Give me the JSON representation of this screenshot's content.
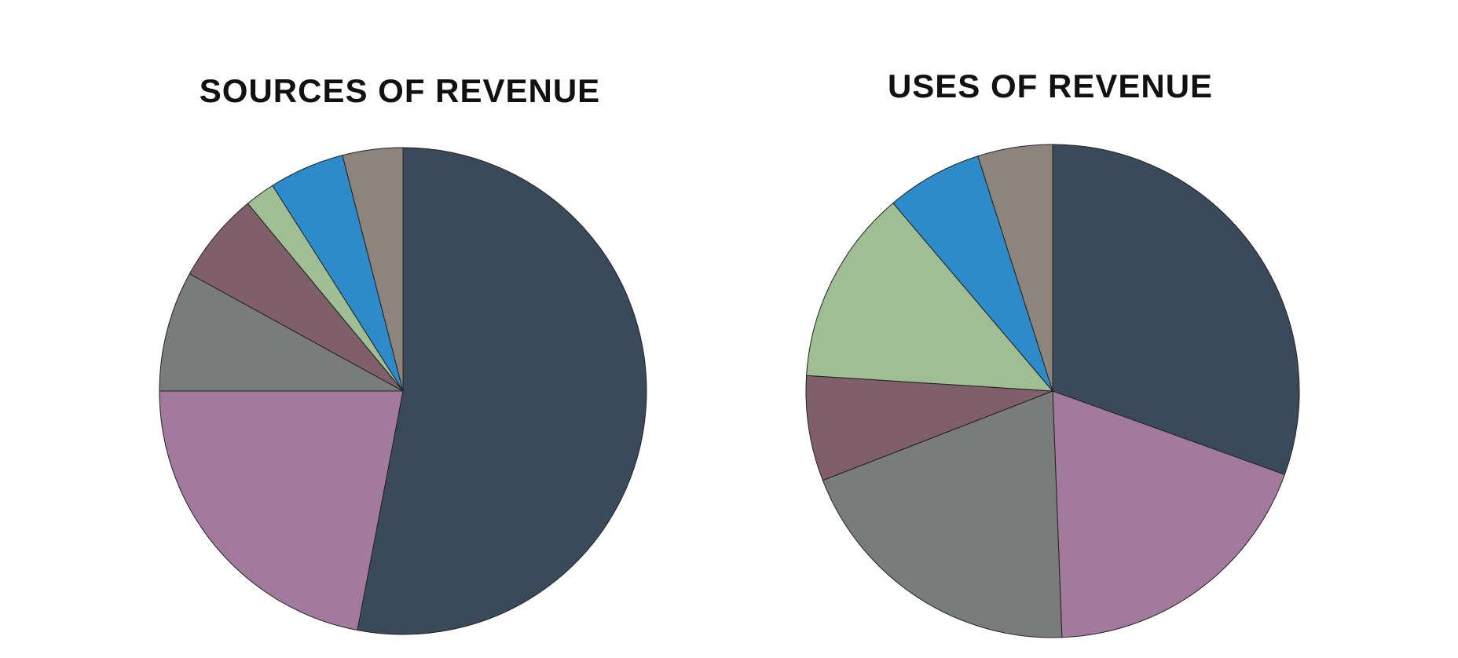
{
  "chart_data": [
    {
      "type": "pie",
      "title": "SOURCES OF REVENUE",
      "values": [
        53,
        22,
        8,
        6,
        2,
        5,
        4
      ],
      "colors": [
        "#3a4a5a",
        "#a27a9b",
        "#7a7c7b",
        "#7e5f6a",
        "#9fbe94",
        "#2e8bc9",
        "#8d857b"
      ]
    },
    {
      "type": "pie",
      "title": "USES OF REVENUE",
      "values": [
        30.5,
        18.9,
        19.7,
        6.9,
        12.8,
        6.3,
        4.9
      ],
      "colors": [
        "#3a4a5a",
        "#a27a9b",
        "#7a7c7b",
        "#7e5f6a",
        "#9fbe94",
        "#2e8bc9",
        "#8d857b"
      ]
    }
  ]
}
